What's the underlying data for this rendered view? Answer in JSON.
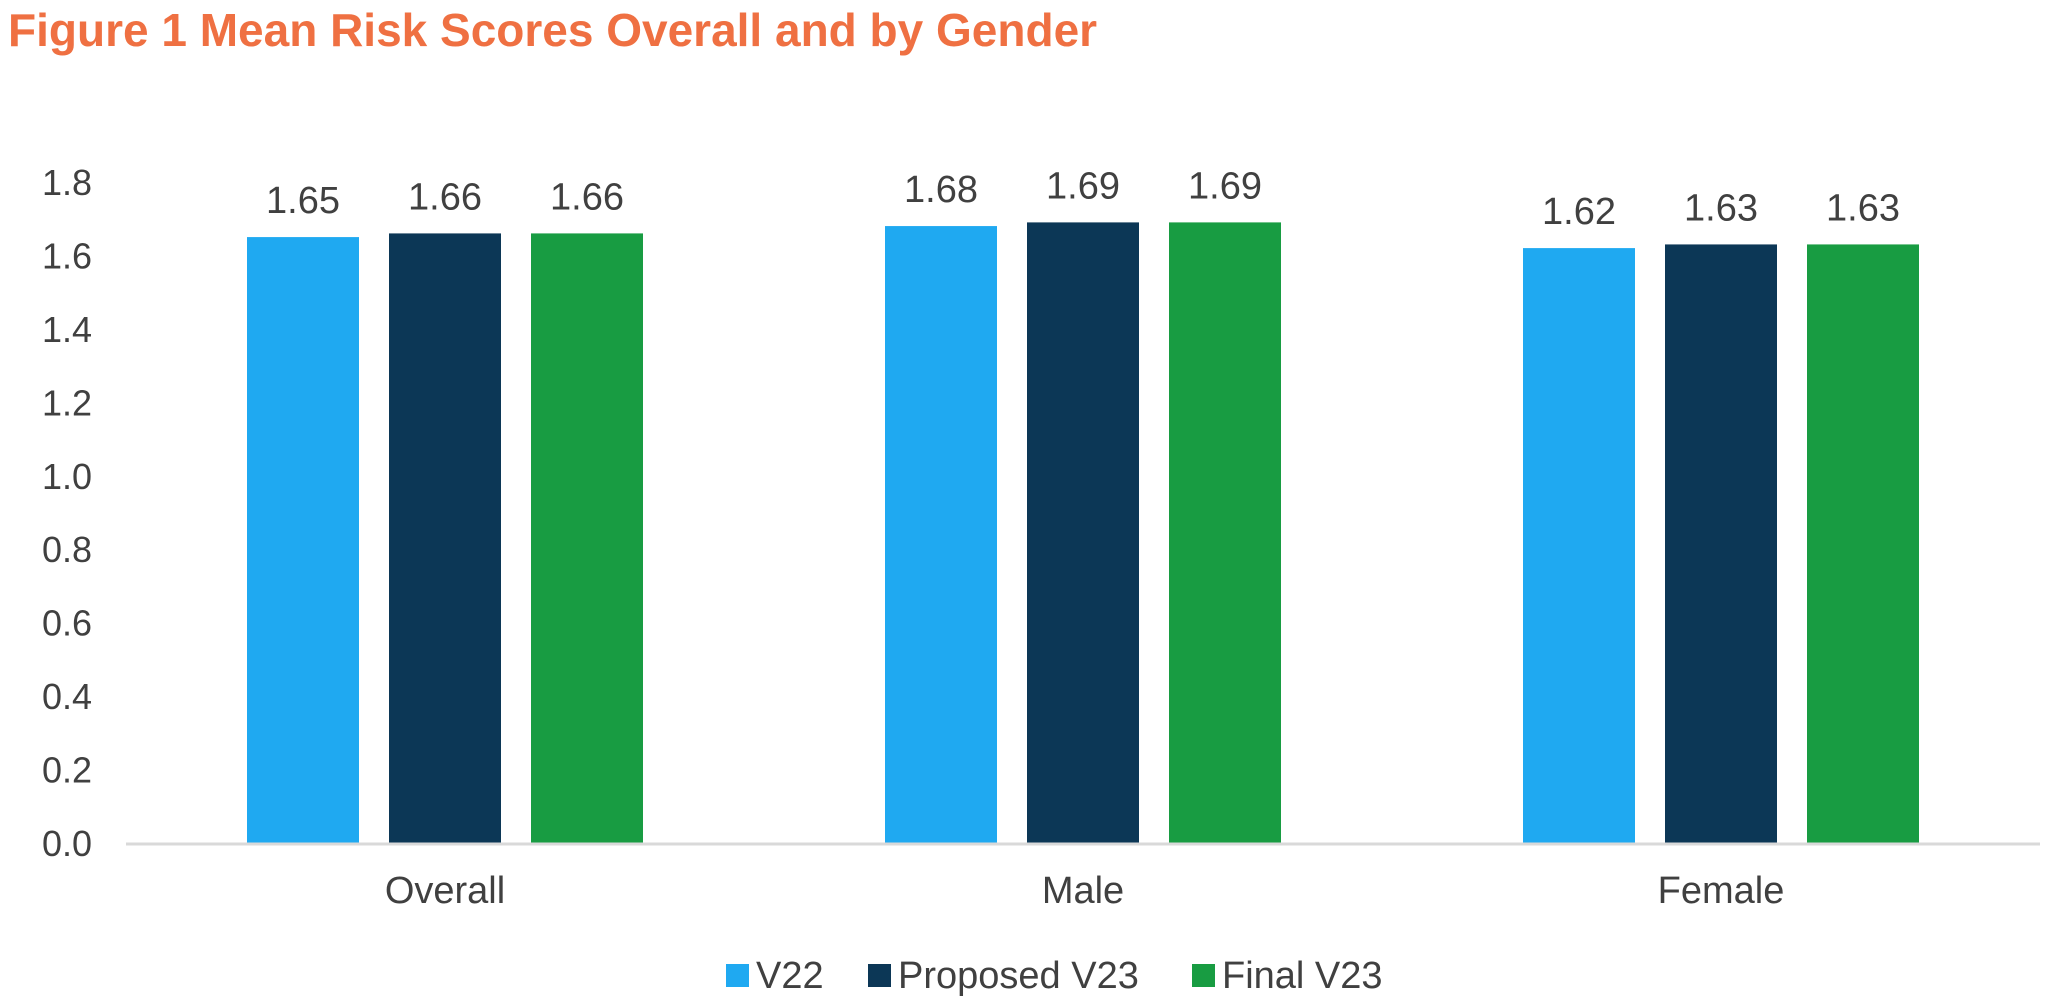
{
  "figure": {
    "title": "Figure 1 Mean Risk Scores Overall and by Gender"
  },
  "chart_data": {
    "type": "bar",
    "title": "Figure 1 Mean Risk Scores Overall and by Gender",
    "categories": [
      "Overall",
      "Male",
      "Female"
    ],
    "series": [
      {
        "name": "V22",
        "color": "#1FA9F1",
        "values": [
          1.65,
          1.68,
          1.62
        ],
        "labels": [
          "1.65",
          "1.68",
          "1.62"
        ]
      },
      {
        "name": "Proposed V23",
        "color": "#0C3756",
        "values": [
          1.66,
          1.69,
          1.63
        ],
        "labels": [
          "1.66",
          "1.69",
          "1.63"
        ]
      },
      {
        "name": "Final V23",
        "color": "#189C42",
        "values": [
          1.66,
          1.69,
          1.63
        ],
        "labels": [
          "1.66",
          "1.69",
          "1.63"
        ]
      }
    ],
    "yticks": [
      "0.0",
      "0.2",
      "0.4",
      "0.6",
      "0.8",
      "1.0",
      "1.2",
      "1.4",
      "1.6",
      "1.8"
    ],
    "ylim": [
      0,
      1.8
    ],
    "xlabel": "",
    "ylabel": "",
    "grid": false,
    "legend": "bottom-center",
    "colors": {
      "title": "#EF7042",
      "axis_text": "#404040",
      "axis_line": "#D9D9D9"
    }
  }
}
